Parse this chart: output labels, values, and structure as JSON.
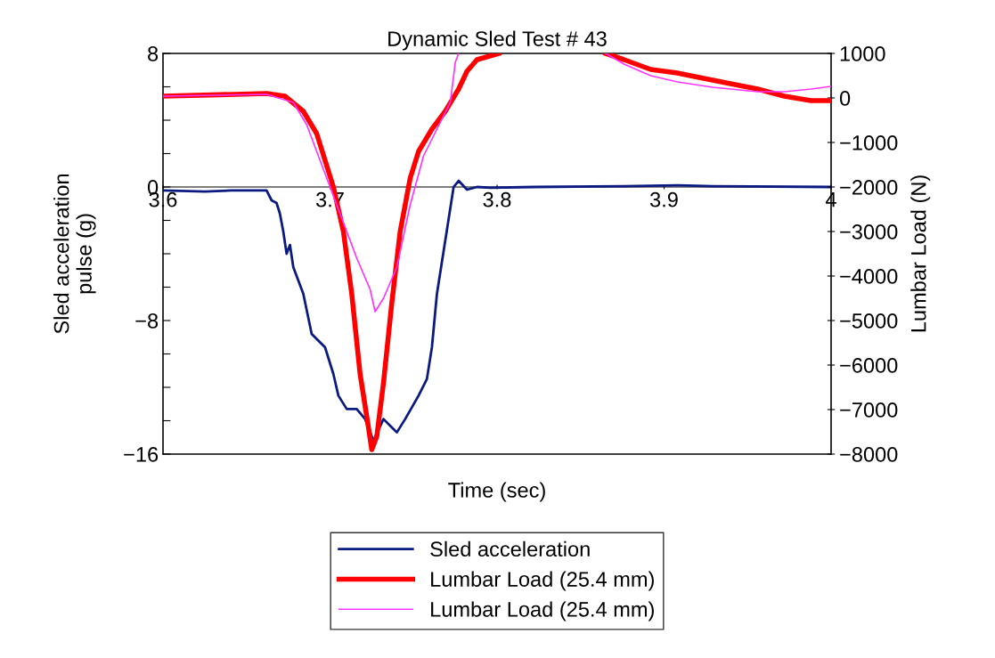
{
  "chart_data": {
    "type": "line",
    "title": "Dynamic Sled Test # 43",
    "xlabel": "Time (sec)",
    "ylabel": "Sled acceleration\npulse (g)",
    "y2label": "Lumbar Load (N)",
    "xlim": [
      3.6,
      4
    ],
    "xticks": [
      3.6,
      3.7,
      3.8,
      3.9,
      4
    ],
    "ylim": [
      -16,
      8
    ],
    "yticks": [
      -16,
      {
        "value": -14,
        "label": null
      },
      {
        "value": -12,
        "label": null
      },
      {
        "value": -10,
        "label": null
      },
      -8,
      {
        "value": -6,
        "label": null
      },
      {
        "value": -4,
        "label": null
      },
      {
        "value": -2,
        "label": null
      },
      0,
      {
        "value": 2,
        "label": null
      },
      {
        "value": 4,
        "label": null
      },
      {
        "value": 6,
        "label": null
      },
      8
    ],
    "y2lim": [
      -8000,
      1000
    ],
    "y2ticks": [
      {
        "value": -8000,
        "label": "−8000"
      },
      {
        "value": -7000,
        "label": "−7000"
      },
      {
        "value": -6000,
        "label": "−6000"
      },
      {
        "value": -5000,
        "label": "−5000"
      },
      {
        "value": -4000,
        "label": "−4000"
      },
      {
        "value": -3000,
        "label": "−3000"
      },
      {
        "value": -2000,
        "label": "−2000"
      },
      {
        "value": -1000,
        "label": "−1000"
      },
      0,
      1000
    ],
    "grid": false,
    "legend": "bottom",
    "line_style": "solid",
    "marker": "none",
    "series": [
      {
        "name": "Sled acceleration",
        "color": "#0a1a80",
        "x": [
          3.6,
          3.625,
          3.641,
          3.662,
          3.665,
          3.668,
          3.67,
          3.672,
          3.674,
          3.676,
          3.678,
          3.684,
          3.689,
          3.697,
          3.702,
          3.705,
          3.71,
          3.716,
          3.721,
          3.726,
          3.732,
          3.737,
          3.74,
          3.745,
          3.753,
          3.758,
          3.761,
          3.764,
          3.769,
          3.774,
          3.777,
          3.782,
          3.788,
          3.796,
          3.822,
          3.876,
          3.908,
          3.929,
          4.0
        ],
        "values": [
          -0.21,
          -0.27,
          -0.21,
          -0.21,
          -0.8,
          -0.96,
          -1.6,
          -2.67,
          -4.0,
          -3.47,
          -4.8,
          -6.4,
          -8.8,
          -9.6,
          -11.2,
          -12.5,
          -13.3,
          -13.3,
          -13.9,
          -15.2,
          -13.9,
          -14.4,
          -14.7,
          -13.9,
          -12.5,
          -11.5,
          -9.6,
          -6.4,
          -3.2,
          0,
          0.37,
          -0.16,
          0,
          -0.05,
          0,
          0.05,
          0.1,
          0.05,
          0
        ]
      },
      {
        "name": "Lumbar Load (25.4 mm)",
        "color": "#ff0000",
        "axis": "y2",
        "x": [
          3.6,
          3.662,
          3.673,
          3.684,
          3.692,
          3.697,
          3.702,
          3.708,
          3.713,
          3.718,
          3.723,
          3.725,
          3.728,
          3.732,
          3.737,
          3.742,
          3.748,
          3.753,
          3.761,
          3.769,
          3.777,
          3.782,
          3.788,
          3.801,
          3.83,
          3.865,
          3.876,
          3.892,
          3.908,
          3.929,
          3.956,
          3.972,
          3.988,
          4.0
        ],
        "values": [
          40,
          100,
          40,
          -300,
          -800,
          -1400,
          -2000,
          -3000,
          -4400,
          -6200,
          -7400,
          -7900,
          -7600,
          -6400,
          -4600,
          -3000,
          -1800,
          -1200,
          -700,
          -300,
          200,
          600,
          860,
          1000,
          null,
          1000,
          860,
          640,
          560,
          400,
          200,
          40,
          -60,
          -60
        ]
      },
      {
        "name": "Lumbar Load (25.4 mm)",
        "color": "#ff33ff",
        "axis": "y2",
        "x": [
          3.6,
          3.662,
          3.678,
          3.686,
          3.694,
          3.7,
          3.708,
          3.716,
          3.724,
          3.727,
          3.732,
          3.74,
          3.748,
          3.756,
          3.764,
          3.772,
          3.775,
          3.777,
          3.83,
          3.865,
          3.876,
          3.892,
          3.908,
          3.929,
          3.956,
          3.972,
          3.988,
          4.0
        ],
        "values": [
          40,
          80,
          -100,
          -600,
          -1400,
          -2000,
          -2800,
          -3600,
          -4300,
          -4800,
          -4500,
          -3800,
          -2400,
          -1300,
          -700,
          -100,
          800,
          1000,
          null,
          1000,
          760,
          500,
          360,
          240,
          140,
          140,
          200,
          260
        ]
      }
    ]
  }
}
